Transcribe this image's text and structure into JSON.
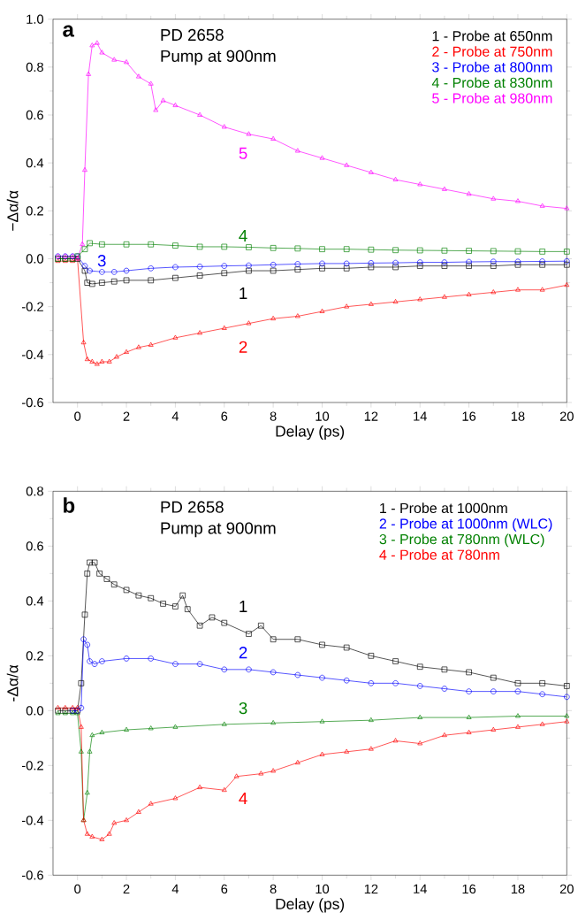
{
  "chart_data": [
    {
      "type": "line",
      "xlabel": "Delay (ps)",
      "ylabel": "−Δα/α",
      "xlim": [
        -1,
        20
      ],
      "ylim": [
        -0.6,
        1.0
      ],
      "xticks": [
        0,
        2,
        4,
        6,
        8,
        10,
        12,
        14,
        16,
        18,
        20
      ],
      "yticks": [
        {
          "value": -0.6,
          "label": "-0.6"
        },
        {
          "value": -0.4,
          "label": "-0.4"
        },
        {
          "value": -0.2,
          "label": "-0.2"
        },
        {
          "value": 0,
          "label": "0.0"
        },
        {
          "value": 0.2,
          "label": "0.2"
        },
        {
          "value": 0.4,
          "label": "0.4"
        },
        {
          "value": 0.6,
          "label": "0.6"
        },
        {
          "value": 0.8,
          "label": "0.8"
        },
        {
          "value": 1.0,
          "label": "1.0"
        }
      ],
      "legend": "top right",
      "grid": false,
      "annotations": [
        "a",
        "PD 2658",
        "Pump at 900nm",
        "1",
        "2",
        "3",
        "4",
        "5"
      ],
      "series": [
        {
          "name": "1 - Probe at 650nm",
          "color": "#000000",
          "marker": "square",
          "x": [
            -0.8,
            -0.5,
            -0.2,
            0,
            0.3,
            0.4,
            0.6,
            1,
            1.5,
            2,
            3,
            4,
            5,
            6,
            7,
            8,
            9,
            10,
            11,
            12,
            13,
            14,
            15,
            16,
            17,
            18,
            19,
            20
          ],
          "values": [
            0,
            0,
            0,
            0,
            -0.05,
            -0.1,
            -0.105,
            -0.1,
            -0.095,
            -0.09,
            -0.09,
            -0.08,
            -0.07,
            -0.06,
            -0.05,
            -0.05,
            -0.045,
            -0.04,
            -0.04,
            -0.035,
            -0.035,
            -0.03,
            -0.03,
            -0.03,
            -0.03,
            -0.025,
            -0.025,
            -0.025
          ]
        },
        {
          "name": "2 - Probe at 750nm",
          "color": "#ff0000",
          "marker": "triangle",
          "x": [
            -0.8,
            -0.5,
            -0.2,
            0,
            0.25,
            0.4,
            0.6,
            0.8,
            1,
            1.3,
            1.6,
            2,
            2.5,
            3,
            4,
            5,
            6,
            7,
            8,
            9,
            10,
            11,
            12,
            13,
            14,
            15,
            16,
            17,
            18,
            19,
            20
          ],
          "values": [
            -0.01,
            -0.01,
            -0.01,
            0,
            -0.35,
            -0.42,
            -0.43,
            -0.44,
            -0.43,
            -0.43,
            -0.41,
            -0.39,
            -0.37,
            -0.36,
            -0.33,
            -0.31,
            -0.29,
            -0.27,
            -0.25,
            -0.24,
            -0.22,
            -0.2,
            -0.19,
            -0.18,
            -0.17,
            -0.16,
            -0.15,
            -0.14,
            -0.13,
            -0.13,
            -0.11
          ]
        },
        {
          "name": "3 - Probe at 800nm",
          "color": "#0000ff",
          "marker": "circle",
          "x": [
            -0.8,
            -0.5,
            -0.2,
            0,
            0.3,
            0.5,
            1,
            1.5,
            2,
            3,
            4,
            5,
            6,
            7,
            8,
            9,
            10,
            11,
            12,
            13,
            14,
            15,
            16,
            17,
            18,
            19,
            20
          ],
          "values": [
            0.01,
            0.01,
            0.01,
            0.01,
            -0.03,
            -0.05,
            -0.055,
            -0.055,
            -0.05,
            -0.04,
            -0.035,
            -0.033,
            -0.03,
            -0.028,
            -0.025,
            -0.022,
            -0.02,
            -0.02,
            -0.018,
            -0.017,
            -0.015,
            -0.015,
            -0.013,
            -0.012,
            -0.012,
            -0.011,
            -0.01
          ]
        },
        {
          "name": "4 - Probe at 830nm",
          "color": "#008000",
          "marker": "square",
          "x": [
            -0.8,
            -0.5,
            -0.2,
            0,
            0.3,
            0.5,
            1,
            2,
            3,
            4,
            5,
            6,
            7,
            8,
            9,
            10,
            11,
            12,
            13,
            14,
            15,
            16,
            17,
            18,
            19,
            20
          ],
          "values": [
            0,
            0,
            0,
            0.01,
            0.04,
            0.065,
            0.06,
            0.06,
            0.06,
            0.055,
            0.05,
            0.05,
            0.048,
            0.045,
            0.043,
            0.04,
            0.04,
            0.038,
            0.036,
            0.035,
            0.034,
            0.033,
            0.032,
            0.031,
            0.03,
            0.03
          ]
        },
        {
          "name": "5 - Probe at 980nm",
          "color": "#ff00ff",
          "marker": "triangle",
          "x": [
            -0.8,
            -0.5,
            -0.2,
            0,
            0.2,
            0.3,
            0.45,
            0.6,
            0.8,
            1,
            1.5,
            2,
            2.5,
            3,
            3.2,
            3.5,
            4,
            5,
            6,
            7,
            8,
            9,
            10,
            11,
            12,
            13,
            14,
            15,
            16,
            17,
            18,
            19,
            20
          ],
          "values": [
            0.01,
            0.01,
            0.01,
            0,
            0.06,
            0.37,
            0.77,
            0.89,
            0.9,
            0.86,
            0.83,
            0.82,
            0.76,
            0.73,
            0.62,
            0.66,
            0.64,
            0.6,
            0.55,
            0.52,
            0.5,
            0.45,
            0.42,
            0.39,
            0.36,
            0.33,
            0.31,
            0.29,
            0.27,
            0.25,
            0.24,
            0.22,
            0.21
          ]
        }
      ]
    },
    {
      "type": "line",
      "xlabel": "Delay (ps)",
      "ylabel": "-Δα/α",
      "xlim": [
        -1,
        20
      ],
      "ylim": [
        -0.6,
        0.8
      ],
      "xticks": [
        0,
        2,
        4,
        6,
        8,
        10,
        12,
        14,
        16,
        18,
        20
      ],
      "yticks": [
        {
          "value": -0.6,
          "label": "-0.6"
        },
        {
          "value": -0.4,
          "label": "-0.4"
        },
        {
          "value": -0.2,
          "label": "-0.2"
        },
        {
          "value": 0,
          "label": "0.0"
        },
        {
          "value": 0.2,
          "label": "0.2"
        },
        {
          "value": 0.4,
          "label": "0.4"
        },
        {
          "value": 0.6,
          "label": "0.6"
        },
        {
          "value": 0.8,
          "label": "0.8"
        }
      ],
      "legend": "top right",
      "grid": false,
      "annotations": [
        "b",
        "PD 2658",
        "Pump at 900nm",
        "1",
        "2",
        "3",
        "4"
      ],
      "series": [
        {
          "name": "1 - Probe at 1000nm",
          "color": "#000000",
          "marker": "square",
          "x": [
            -0.8,
            -0.5,
            -0.2,
            0,
            0.15,
            0.3,
            0.4,
            0.5,
            0.7,
            0.9,
            1.2,
            1.5,
            2,
            2.5,
            3,
            3.5,
            4,
            4.3,
            4.5,
            5,
            5.5,
            6,
            7,
            7.5,
            8,
            9,
            10,
            11,
            12,
            13,
            14,
            15,
            16,
            17,
            18,
            19,
            20
          ],
          "values": [
            0,
            0,
            0,
            0,
            0.1,
            0.35,
            0.5,
            0.54,
            0.54,
            0.5,
            0.48,
            0.46,
            0.44,
            0.42,
            0.41,
            0.39,
            0.38,
            0.42,
            0.37,
            0.31,
            0.34,
            0.32,
            0.28,
            0.31,
            0.26,
            0.26,
            0.24,
            0.23,
            0.2,
            0.18,
            0.16,
            0.15,
            0.14,
            0.12,
            0.1,
            0.1,
            0.09
          ]
        },
        {
          "name": "2 - Probe at 1000nm (WLC)",
          "color": "#0000ff",
          "marker": "circle",
          "x": [
            -0.2,
            0,
            0.15,
            0.25,
            0.4,
            0.5,
            0.7,
            1,
            2,
            3,
            4,
            5,
            6,
            7,
            8,
            9,
            10,
            11,
            12,
            13,
            14,
            15,
            16,
            17,
            18,
            19,
            20
          ],
          "values": [
            0,
            0,
            0.01,
            0.26,
            0.24,
            0.18,
            0.17,
            0.18,
            0.19,
            0.19,
            0.17,
            0.17,
            0.15,
            0.15,
            0.14,
            0.13,
            0.12,
            0.11,
            0.1,
            0.1,
            0.09,
            0.08,
            0.07,
            0.07,
            0.07,
            0.06,
            0.05
          ]
        },
        {
          "name": "3 - Probe at 780nm (WLC)",
          "color": "#008000",
          "marker": "triangle",
          "x": [
            -0.8,
            -0.5,
            -0.2,
            0,
            0.15,
            0.25,
            0.4,
            0.5,
            0.6,
            1,
            2,
            3,
            4,
            6,
            8,
            10,
            12,
            14,
            16,
            18,
            20
          ],
          "values": [
            -0.01,
            -0.01,
            -0.01,
            -0.01,
            -0.15,
            -0.4,
            -0.3,
            -0.15,
            -0.09,
            -0.08,
            -0.07,
            -0.065,
            -0.06,
            -0.05,
            -0.045,
            -0.04,
            -0.035,
            -0.025,
            -0.025,
            -0.02,
            -0.02
          ]
        },
        {
          "name": "4 - Probe at 780nm",
          "color": "#ff0000",
          "marker": "triangle",
          "x": [
            -0.8,
            -0.5,
            -0.2,
            0,
            0.15,
            0.25,
            0.4,
            0.6,
            1,
            1.3,
            1.5,
            2,
            2.5,
            3,
            4,
            5,
            6,
            6.5,
            7.5,
            8,
            9,
            10,
            11,
            12,
            13,
            14,
            15,
            16,
            17,
            18,
            19,
            20
          ],
          "values": [
            0.01,
            0.01,
            0.01,
            0.01,
            -0.06,
            -0.4,
            -0.45,
            -0.46,
            -0.47,
            -0.45,
            -0.41,
            -0.4,
            -0.37,
            -0.34,
            -0.32,
            -0.28,
            -0.29,
            -0.24,
            -0.23,
            -0.22,
            -0.19,
            -0.16,
            -0.15,
            -0.14,
            -0.11,
            -0.12,
            -0.09,
            -0.08,
            -0.07,
            -0.06,
            -0.05,
            -0.04
          ]
        }
      ]
    }
  ]
}
